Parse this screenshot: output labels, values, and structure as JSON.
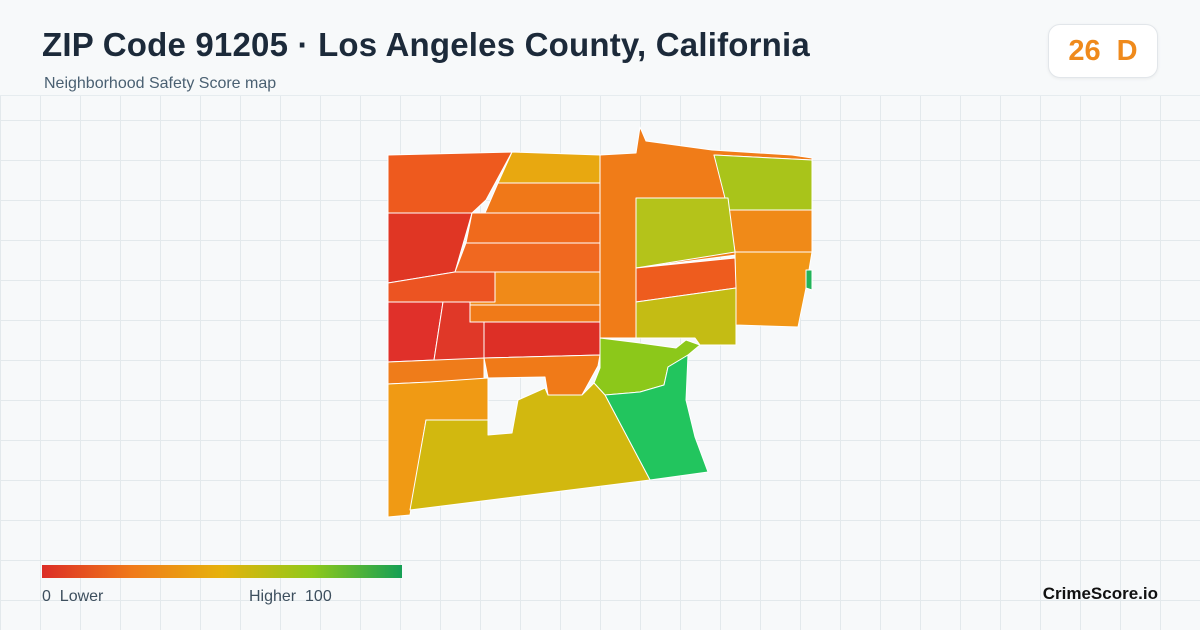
{
  "header": {
    "title": "ZIP Code 91205 · Los Angeles County, California",
    "subtitle": "Neighborhood Safety Score map"
  },
  "score_badge": {
    "score": "26",
    "grade": "D",
    "color": "#ef8a1c"
  },
  "map": {
    "regions": [
      {
        "name": "region-nw-corner",
        "color": "#ee5a1e"
      },
      {
        "name": "region-north-band",
        "color": "#e8a810"
      },
      {
        "name": "region-north-center-strip",
        "color": "#f07c18"
      },
      {
        "name": "region-north-middle",
        "color": "#f07818"
      },
      {
        "name": "region-northeast-upper",
        "color": "#a9c41a"
      },
      {
        "name": "region-east-upper",
        "color": "#f08a18"
      },
      {
        "name": "region-west-upper",
        "color": "#e03624"
      },
      {
        "name": "region-center-band-a",
        "color": "#f06a1c"
      },
      {
        "name": "region-center-band-b",
        "color": "#f06820"
      },
      {
        "name": "region-center-east-green",
        "color": "#b4c31a"
      },
      {
        "name": "region-east-lower",
        "color": "#f19616"
      },
      {
        "name": "region-west-middle",
        "color": "#ec5422"
      },
      {
        "name": "region-center-orange",
        "color": "#f08a18"
      },
      {
        "name": "region-central-strip",
        "color": "#ee5c1e"
      },
      {
        "name": "region-east-yellowgreen",
        "color": "#c4bc14"
      },
      {
        "name": "region-west-lower-a",
        "color": "#e0302a"
      },
      {
        "name": "region-west-lower-b",
        "color": "#e03828"
      },
      {
        "name": "region-center-small",
        "color": "#f07a18"
      },
      {
        "name": "region-center-red",
        "color": "#dd2f26"
      },
      {
        "name": "region-south-green",
        "color": "#8cc81a"
      },
      {
        "name": "region-southeast-green",
        "color": "#22c55e"
      },
      {
        "name": "region-southwest-a",
        "color": "#ef7c1a"
      },
      {
        "name": "region-southwest-b",
        "color": "#f09a14"
      },
      {
        "name": "region-south-center",
        "color": "#f07a18"
      },
      {
        "name": "region-south-yellow",
        "color": "#d2b80f"
      },
      {
        "name": "region-east-edge-sliver",
        "color": "#22b45a"
      }
    ]
  },
  "legend": {
    "low_label": "0  Lower",
    "high_label": "Higher  100",
    "colors": [
      "#dc2d26",
      "#f07a1a",
      "#e6b20c",
      "#8fc91a",
      "#159f55"
    ]
  },
  "brand": {
    "name": "CrimeScore.io"
  }
}
